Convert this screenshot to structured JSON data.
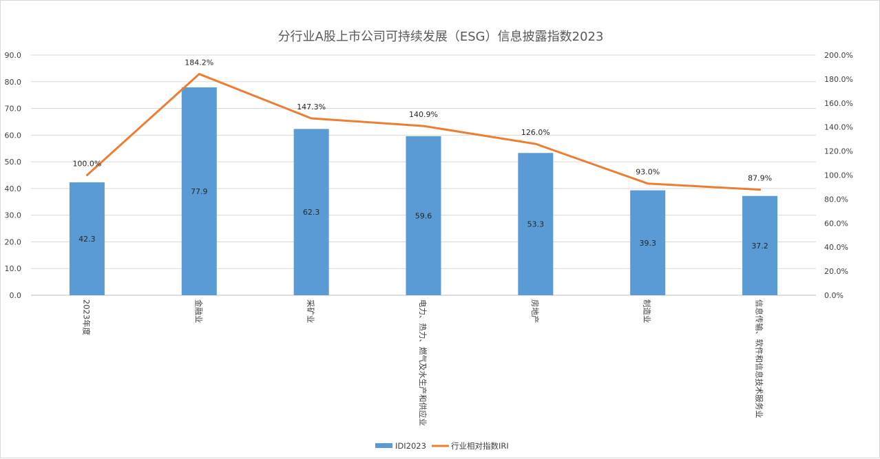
{
  "chart_data": {
    "type": "bar",
    "title": "分行业A股上市公司可持续发展（ESG）信息披露指数2023",
    "categories": [
      "2023年度",
      "金融业",
      "采矿业",
      "电力、热力、燃气及水生产和供应业",
      "房地产",
      "制造业",
      "信息传输、软件和信息技术服务业"
    ],
    "series": [
      {
        "name": "IDI2023",
        "type": "bar",
        "axis": "left",
        "color": "#5b9bd5",
        "values": [
          42.3,
          77.9,
          62.3,
          59.6,
          53.3,
          39.3,
          37.2
        ],
        "labels": [
          "42.3",
          "77.9",
          "62.3",
          "59.6",
          "53.3",
          "39.3",
          "37.2"
        ]
      },
      {
        "name": "行业相对指数IRI",
        "type": "line",
        "axis": "right",
        "color": "#ed7d31",
        "values": [
          100.0,
          184.2,
          147.3,
          140.9,
          126.0,
          93.0,
          87.9
        ],
        "labels": [
          "100.0%",
          "184.2%",
          "147.3%",
          "140.9%",
          "126.0%",
          "93.0%",
          "87.9%"
        ]
      }
    ],
    "y_left": {
      "min": 0,
      "max": 90,
      "ticks": [
        "0.0",
        "10.0",
        "20.0",
        "30.0",
        "40.0",
        "50.0",
        "60.0",
        "70.0",
        "80.0",
        "90.0"
      ]
    },
    "y_right": {
      "min": 0,
      "max": 200,
      "unit": "%",
      "ticks": [
        "0.0%",
        "20.0%",
        "40.0%",
        "60.0%",
        "80.0%",
        "100.0%",
        "120.0%",
        "140.0%",
        "160.0%",
        "180.0%",
        "200.0%"
      ]
    },
    "grid": true,
    "legend": "bottom"
  }
}
